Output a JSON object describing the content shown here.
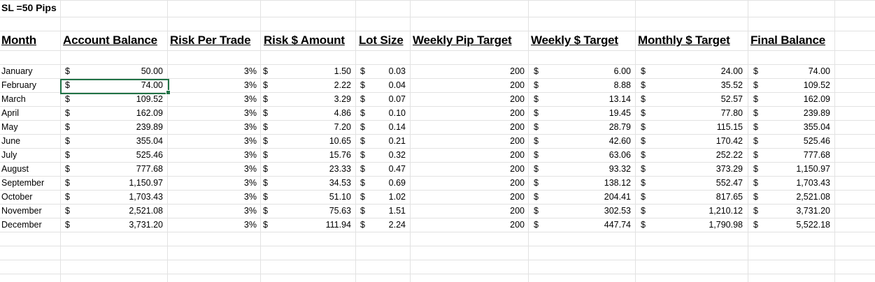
{
  "sheet": {
    "title": "SL =50 Pips",
    "headers": [
      "Month",
      "Account Balance",
      "Risk Per Trade",
      "Risk $ Amount",
      "Lot Size",
      "Weekly Pip Target",
      "Weekly $ Target",
      "Monthly $ Target",
      "Final Balance"
    ],
    "currency_symbol": "$",
    "selected_cell": "B8",
    "accent_color": "#217346",
    "gridline_color": "#e2e2e2",
    "rows": [
      {
        "month": "January",
        "balance": "50.00",
        "risk": "3%",
        "risk_amt": "1.50",
        "lot": "0.03",
        "pips": "200",
        "weekly": "6.00",
        "monthly": "24.00",
        "final": "74.00"
      },
      {
        "month": "February",
        "balance": "74.00",
        "risk": "3%",
        "risk_amt": "2.22",
        "lot": "0.04",
        "pips": "200",
        "weekly": "8.88",
        "monthly": "35.52",
        "final": "109.52"
      },
      {
        "month": "March",
        "balance": "109.52",
        "risk": "3%",
        "risk_amt": "3.29",
        "lot": "0.07",
        "pips": "200",
        "weekly": "13.14",
        "monthly": "52.57",
        "final": "162.09"
      },
      {
        "month": "April",
        "balance": "162.09",
        "risk": "3%",
        "risk_amt": "4.86",
        "lot": "0.10",
        "pips": "200",
        "weekly": "19.45",
        "monthly": "77.80",
        "final": "239.89"
      },
      {
        "month": "May",
        "balance": "239.89",
        "risk": "3%",
        "risk_amt": "7.20",
        "lot": "0.14",
        "pips": "200",
        "weekly": "28.79",
        "monthly": "115.15",
        "final": "355.04"
      },
      {
        "month": "June",
        "balance": "355.04",
        "risk": "3%",
        "risk_amt": "10.65",
        "lot": "0.21",
        "pips": "200",
        "weekly": "42.60",
        "monthly": "170.42",
        "final": "525.46"
      },
      {
        "month": "July",
        "balance": "525.46",
        "risk": "3%",
        "risk_amt": "15.76",
        "lot": "0.32",
        "pips": "200",
        "weekly": "63.06",
        "monthly": "252.22",
        "final": "777.68"
      },
      {
        "month": "August",
        "balance": "777.68",
        "risk": "3%",
        "risk_amt": "23.33",
        "lot": "0.47",
        "pips": "200",
        "weekly": "93.32",
        "monthly": "373.29",
        "final": "1,150.97"
      },
      {
        "month": "September",
        "balance": "1,150.97",
        "risk": "3%",
        "risk_amt": "34.53",
        "lot": "0.69",
        "pips": "200",
        "weekly": "138.12",
        "monthly": "552.47",
        "final": "1,703.43"
      },
      {
        "month": "October",
        "balance": "1,703.43",
        "risk": "3%",
        "risk_amt": "51.10",
        "lot": "1.02",
        "pips": "200",
        "weekly": "204.41",
        "monthly": "817.65",
        "final": "2,521.08"
      },
      {
        "month": "November",
        "balance": "2,521.08",
        "risk": "3%",
        "risk_amt": "75.63",
        "lot": "1.51",
        "pips": "200",
        "weekly": "302.53",
        "monthly": "1,210.12",
        "final": "3,731.20"
      },
      {
        "month": "December",
        "balance": "3,731.20",
        "risk": "3%",
        "risk_amt": "111.94",
        "lot": "2.24",
        "pips": "200",
        "weekly": "447.74",
        "monthly": "1,790.98",
        "final": "5,522.18"
      }
    ]
  }
}
